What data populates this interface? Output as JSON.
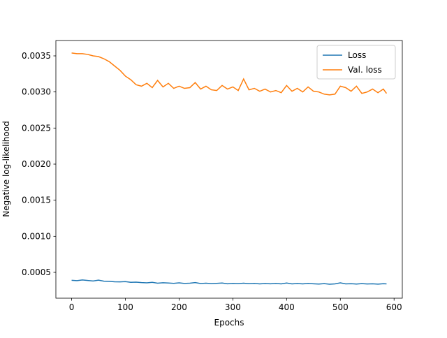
{
  "chart_data": {
    "type": "line",
    "x_label": "Epochs",
    "y_label": "Negative log-likelihood",
    "x": [
      0,
      10,
      20,
      30,
      40,
      50,
      60,
      70,
      80,
      90,
      100,
      110,
      120,
      130,
      140,
      150,
      160,
      170,
      180,
      190,
      200,
      210,
      220,
      230,
      240,
      250,
      260,
      270,
      280,
      290,
      300,
      310,
      320,
      330,
      340,
      350,
      360,
      370,
      380,
      390,
      400,
      410,
      420,
      430,
      440,
      450,
      460,
      470,
      480,
      490,
      500,
      510,
      520,
      530,
      540,
      550,
      560,
      570,
      580,
      586
    ],
    "series": [
      {
        "name": "Loss",
        "color": "#1f77b4",
        "values": [
          0.00039,
          0.000385,
          0.000395,
          0.000388,
          0.00038,
          0.000392,
          0.000378,
          0.000375,
          0.00037,
          0.000368,
          0.000372,
          0.000362,
          0.000365,
          0.000358,
          0.000355,
          0.000362,
          0.00035,
          0.000356,
          0.000352,
          0.000348,
          0.000355,
          0.000346,
          0.00035,
          0.000358,
          0.000345,
          0.00035,
          0.000344,
          0.000348,
          0.000352,
          0.000342,
          0.000346,
          0.000344,
          0.00035,
          0.000343,
          0.000346,
          0.00034,
          0.000345,
          0.000342,
          0.000347,
          0.00034,
          0.000352,
          0.000341,
          0.000345,
          0.00034,
          0.000346,
          0.000342,
          0.000338,
          0.000344,
          0.000336,
          0.00034,
          0.000355,
          0.00034,
          0.000343,
          0.000338,
          0.000344,
          0.000339,
          0.000342,
          0.000337,
          0.000343,
          0.00034
        ]
      },
      {
        "name": "Val. loss",
        "color": "#ff7f0e",
        "values": [
          0.00354,
          0.00353,
          0.00353,
          0.00352,
          0.0035,
          0.00349,
          0.00346,
          0.00342,
          0.00336,
          0.0033,
          0.00322,
          0.00317,
          0.0031,
          0.00308,
          0.00312,
          0.00306,
          0.00316,
          0.00307,
          0.00312,
          0.00305,
          0.00308,
          0.00305,
          0.00306,
          0.00313,
          0.00304,
          0.00308,
          0.00303,
          0.00302,
          0.00309,
          0.00304,
          0.00307,
          0.00302,
          0.00318,
          0.00303,
          0.00305,
          0.00301,
          0.00304,
          0.003,
          0.00302,
          0.00299,
          0.00309,
          0.00301,
          0.00305,
          0.003,
          0.00307,
          0.00301,
          0.003,
          0.00297,
          0.00296,
          0.00297,
          0.00308,
          0.00306,
          0.00301,
          0.00308,
          0.00298,
          0.003,
          0.00304,
          0.00299,
          0.00304,
          0.00298
        ]
      }
    ],
    "xlim": [
      -29.3,
      615.3
    ],
    "xticks": [
      0,
      100,
      200,
      300,
      400,
      500,
      600
    ],
    "ylim": [
      0.000142,
      0.003713
    ],
    "yticks": [
      0.0005,
      {
        "value": 0.001,
        "label": "0.0010"
      },
      0.0015,
      {
        "value": 0.002,
        "label": "0.0020"
      },
      0.0025,
      {
        "value": 0.003,
        "label": "0.0030"
      },
      0.0035
    ],
    "legend": "upper right"
  }
}
